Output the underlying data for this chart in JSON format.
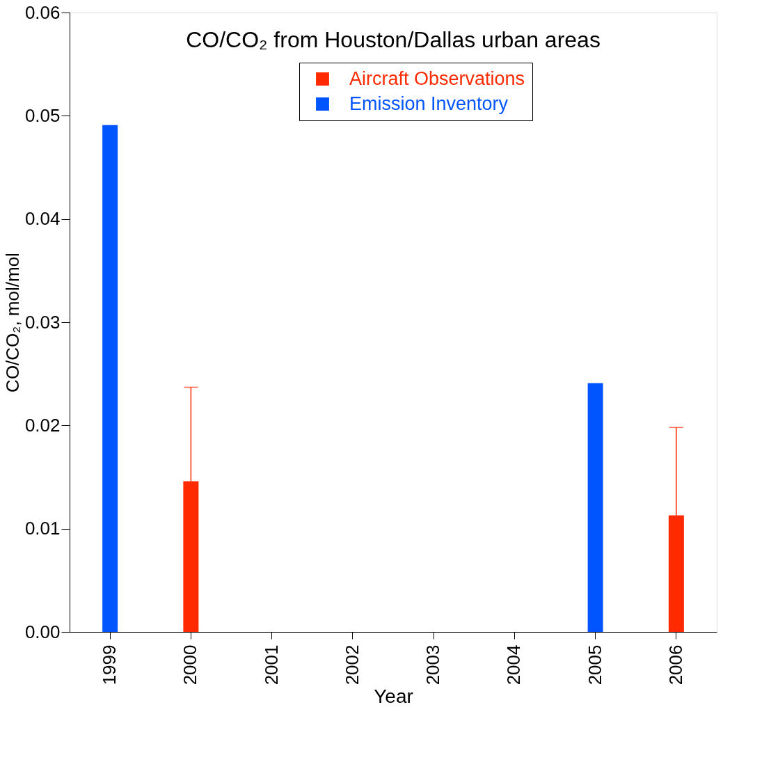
{
  "chart_data": {
    "type": "bar",
    "title": "CO/CO₂ from Houston/Dallas urban areas",
    "xlabel": "Year",
    "ylabel": "CO/CO₂, mol/mol",
    "categories": [
      "1999",
      "2000",
      "2001",
      "2002",
      "2003",
      "2004",
      "2005",
      "2006"
    ],
    "series": [
      {
        "name": "Aircraft Observations",
        "color": "#ff2a00",
        "values": [
          null,
          0.0146,
          null,
          null,
          null,
          null,
          null,
          0.0113
        ],
        "errors": [
          null,
          [
            0.0146,
            0.0237
          ],
          null,
          null,
          null,
          null,
          null,
          [
            0.0113,
            0.0198
          ]
        ]
      },
      {
        "name": "Emission Inventory",
        "color": "#0055ff",
        "values": [
          0.0491,
          null,
          null,
          null,
          null,
          null,
          0.0241,
          null
        ]
      }
    ],
    "ylim": [
      0,
      0.06
    ],
    "yticks": [
      {
        "value": 0,
        "label": "0.00"
      },
      {
        "value": 0.01,
        "label": "0.01"
      },
      {
        "value": 0.02,
        "label": "0.02"
      },
      {
        "value": 0.03,
        "label": "0.03"
      },
      {
        "value": 0.04,
        "label": "0.04"
      },
      {
        "value": 0.05,
        "label": "0.05"
      },
      {
        "value": 0.06,
        "label": "0.06"
      }
    ],
    "grid": false,
    "legend": "top right"
  }
}
